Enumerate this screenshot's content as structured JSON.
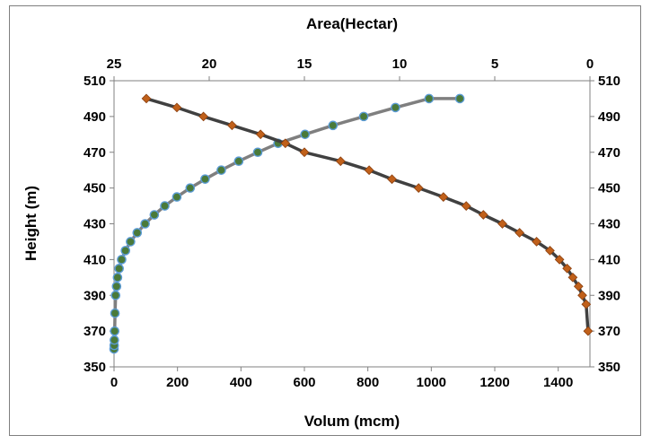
{
  "chart_data": {
    "type": "scatter",
    "title": "",
    "xlabel": "Volum (mcm)",
    "x2label": "Area(Hectar)",
    "ylabel": "Height (m)",
    "xlim": [
      0,
      1500
    ],
    "x2lim": [
      25,
      0
    ],
    "x2_reversed": true,
    "ylim": [
      350,
      510
    ],
    "x_ticks": [
      "0",
      "200",
      "400",
      "600",
      "800",
      "1000",
      "1200",
      "1400"
    ],
    "x2_ticks": [
      "25",
      "20",
      "15",
      "10",
      "5",
      "0"
    ],
    "y_ticks": [
      "350",
      "370",
      "390",
      "410",
      "430",
      "450",
      "470",
      "490",
      "510"
    ],
    "y2_ticks": [
      "350",
      "370",
      "390",
      "410",
      "430",
      "450",
      "470",
      "490",
      "510"
    ],
    "grid": false,
    "legend": "none",
    "series": [
      {
        "axis": "bottom",
        "line_color": "#7f7f7f",
        "marker": "circle",
        "marker_color": "#4a7a3a",
        "marker_edge": "#5b9bd5",
        "x": [
          0,
          0.5,
          1,
          2,
          3,
          5,
          8,
          11,
          16,
          24,
          36,
          52,
          73,
          98,
          127,
          160,
          198,
          240,
          287,
          338,
          393,
          453,
          517,
          602,
          690,
          787,
          887,
          993,
          1090
        ],
        "y": [
          360,
          362,
          365,
          370,
          380,
          390,
          395,
          400,
          405,
          410,
          415,
          420,
          425,
          430,
          435,
          440,
          445,
          450,
          455,
          460,
          465,
          470,
          475,
          480,
          485,
          490,
          495,
          500,
          500
        ]
      },
      {
        "axis": "top",
        "line_color": "#404040",
        "marker": "diamond",
        "marker_color": "#c0601a",
        "x": [
          23.3,
          21.7,
          20.3,
          18.8,
          17.3,
          16.0,
          15.0,
          13.1,
          11.6,
          10.4,
          9.0,
          7.7,
          6.5,
          5.6,
          4.6,
          3.7,
          2.8,
          2.1,
          1.6,
          1.2,
          0.9,
          0.6,
          0.4,
          0.2,
          0.1
        ],
        "y": [
          500,
          495,
          490,
          485,
          480,
          475,
          470,
          465,
          460,
          455,
          450,
          445,
          440,
          435,
          430,
          425,
          420,
          415,
          410,
          405,
          400,
          395,
          390,
          385,
          370
        ]
      }
    ]
  }
}
